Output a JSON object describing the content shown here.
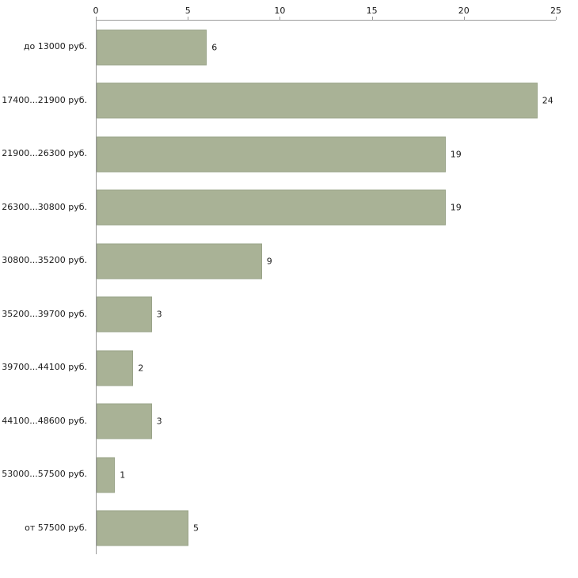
{
  "chart_data": {
    "type": "bar",
    "orientation": "horizontal",
    "title": "",
    "xlabel": "",
    "ylabel": "",
    "categories": [
      "до 13000 руб.",
      "17400...21900 руб.",
      "21900...26300 руб.",
      "26300...30800 руб.",
      "30800...35200 руб.",
      "35200...39700 руб.",
      "39700...44100 руб.",
      "44100...48600 руб.",
      "53000...57500 руб.",
      "от 57500 руб."
    ],
    "values": [
      6,
      24,
      19,
      19,
      9,
      3,
      2,
      3,
      1,
      5
    ],
    "x_ticks": [
      0,
      5,
      10,
      15,
      20,
      25
    ],
    "xlim": [
      0,
      25
    ],
    "grid": false,
    "legend": "none",
    "bar_color": "#a9b296",
    "bar_border_color": "#9aa489",
    "axis_color": "#9a9a9a",
    "label_color": "#1a1a1a"
  }
}
